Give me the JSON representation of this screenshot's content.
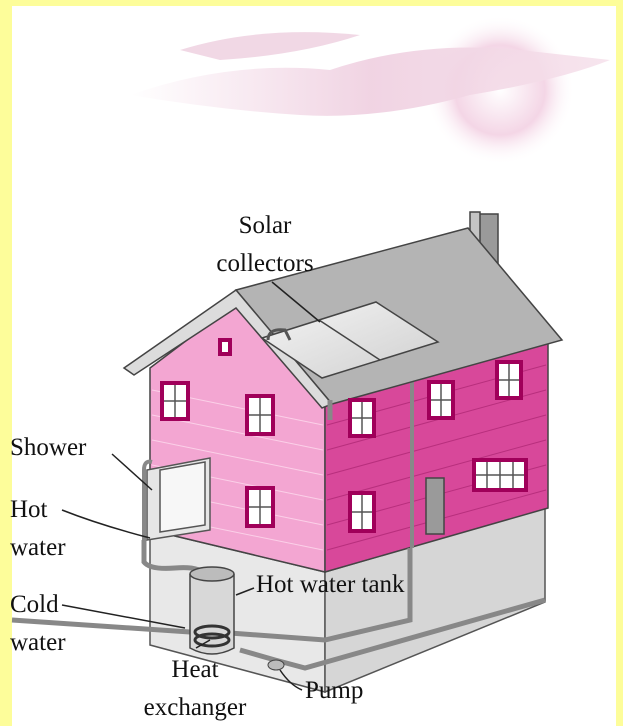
{
  "labels": {
    "solar_collectors": [
      "Solar",
      "collectors"
    ],
    "shower": [
      "Shower"
    ],
    "hot_water": [
      "Hot",
      "water"
    ],
    "cold_water": [
      "Cold",
      "water"
    ],
    "hot_water_tank": [
      "Hot water tank"
    ],
    "heat_exchanger": [
      "Heat",
      "exchanger"
    ],
    "pump": [
      "Pump"
    ]
  }
}
